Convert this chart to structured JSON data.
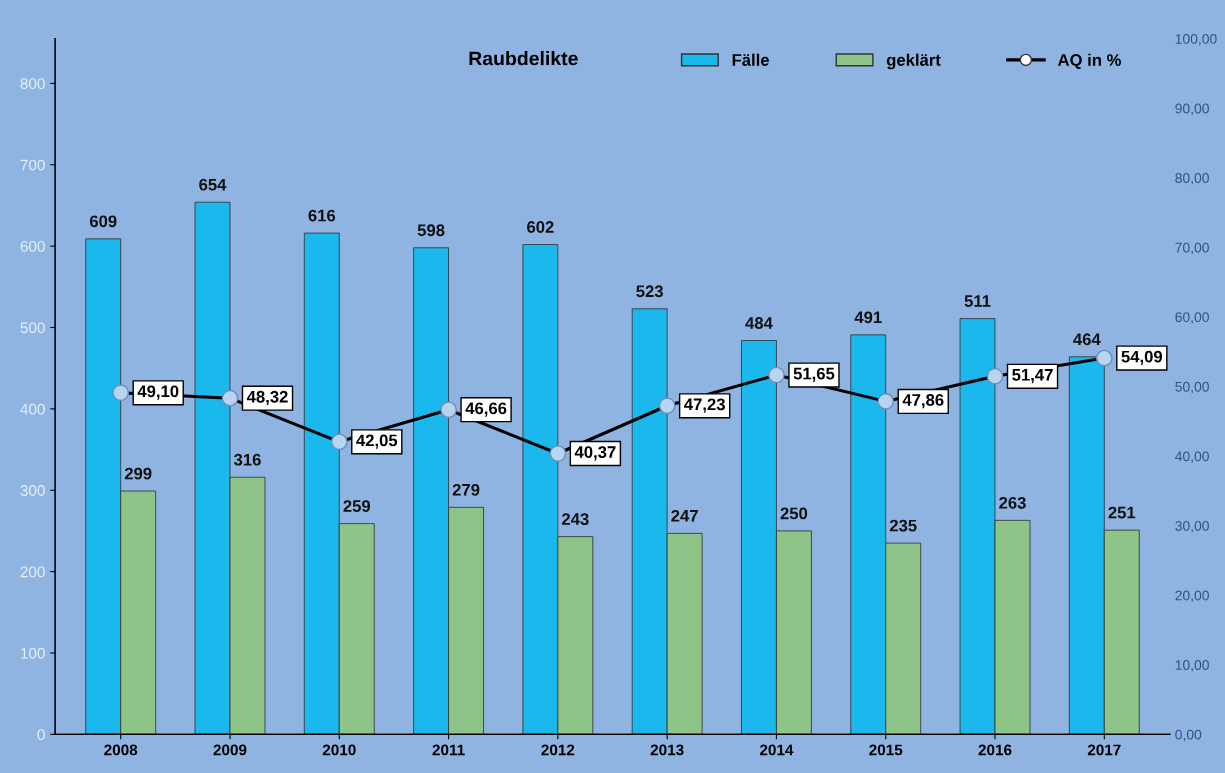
{
  "chart_data": {
    "type": "bar",
    "title": "Raubdelikte",
    "categories": [
      "2008",
      "2009",
      "2010",
      "2011",
      "2012",
      "2013",
      "2014",
      "2015",
      "2016",
      "2017"
    ],
    "series": [
      {
        "name": "Fälle",
        "color": "#1ab8ec",
        "values": [
          609,
          654,
          616,
          598,
          602,
          523,
          484,
          491,
          511,
          464
        ]
      },
      {
        "name": "geklärt",
        "color": "#8fc488",
        "values": [
          299,
          316,
          259,
          279,
          243,
          247,
          250,
          235,
          263,
          251
        ]
      },
      {
        "name": "AQ in %",
        "type": "line",
        "axis": "y2",
        "color": "#000000",
        "marker": "circle",
        "values": [
          49.1,
          48.32,
          42.05,
          46.66,
          40.37,
          47.23,
          51.65,
          47.86,
          51.47,
          54.09
        ],
        "value_labels": [
          "49,10",
          "48,32",
          "42,05",
          "46,66",
          "40,37",
          "47,23",
          "51,65",
          "47,86",
          "51,47",
          "54,09"
        ]
      }
    ],
    "data_labels": true,
    "ylim": [
      0,
      855
    ],
    "yticks": [
      0,
      100,
      200,
      300,
      400,
      500,
      600,
      700,
      800
    ],
    "y2lim": [
      0,
      100
    ],
    "y2ticks": [
      {
        "value": 0,
        "label": "0,00"
      },
      {
        "value": 10,
        "label": "10,00"
      },
      {
        "value": 20,
        "label": "20,00"
      },
      {
        "value": 30,
        "label": "30,00"
      },
      {
        "value": 40,
        "label": "40,00"
      },
      {
        "value": 50,
        "label": "50,00"
      },
      {
        "value": 60,
        "label": "60,00"
      },
      {
        "value": 70,
        "label": "70,00"
      },
      {
        "value": 80,
        "label": "80,00"
      },
      {
        "value": 90,
        "label": "90,00"
      },
      {
        "value": 100,
        "label": "100,00"
      }
    ],
    "grid": false,
    "legend": "top right"
  }
}
